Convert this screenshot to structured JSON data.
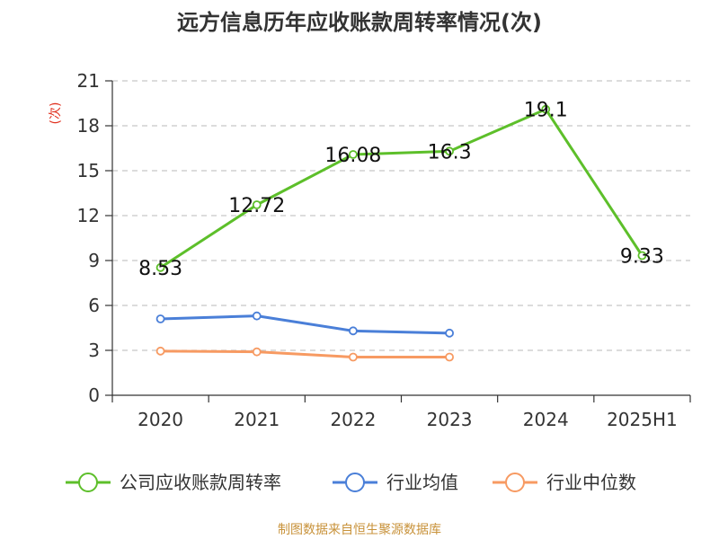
{
  "chart_data": {
    "type": "line",
    "title": "远方信息历年应收账款周转率情况(次)",
    "ylabel": "(次)",
    "categories": [
      "2020",
      "2021",
      "2022",
      "2023",
      "2024",
      "2025H1"
    ],
    "ylim": [
      0,
      21
    ],
    "yticks": [
      0,
      3,
      6,
      9,
      12,
      15,
      18,
      21
    ],
    "grid": true,
    "legend_position": "bottom",
    "series": [
      {
        "name": "公司应收账款周转率",
        "color": "#5dbf2a",
        "show_labels": true,
        "values": [
          8.53,
          12.72,
          16.08,
          16.3,
          19.1,
          9.33
        ],
        "labels": [
          "8.53",
          "12.72",
          "16.08",
          "16.3",
          "19.1",
          "9.33"
        ]
      },
      {
        "name": "行业均值",
        "color": "#4a7fd8",
        "show_labels": false,
        "values": [
          5.1,
          5.3,
          4.3,
          4.15,
          null,
          null
        ]
      },
      {
        "name": "行业中位数",
        "color": "#f79a62",
        "show_labels": false,
        "values": [
          2.95,
          2.9,
          2.55,
          2.55,
          null,
          null
        ]
      }
    ],
    "ylabel_color": "#e0301e",
    "source": "制图数据来自恒生聚源数据库",
    "source_color": "#c8923a"
  }
}
